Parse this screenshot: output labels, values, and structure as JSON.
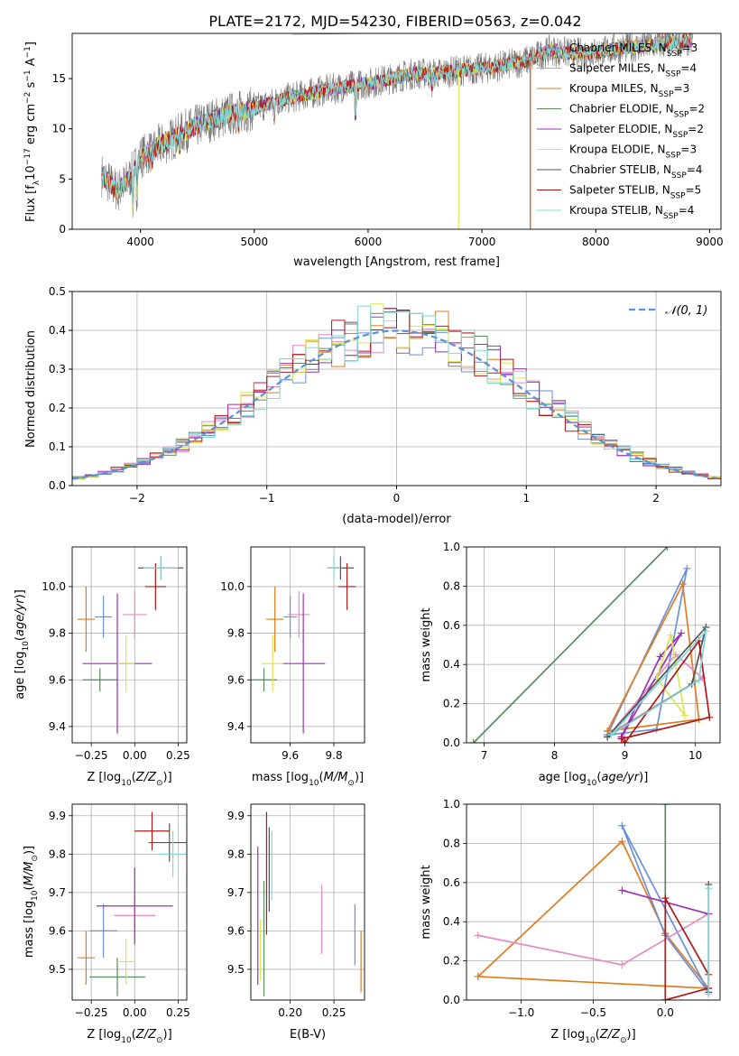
{
  "figure": {
    "title": "PLATE=2172, MJD=54230, FIBERID=0563, z=0.042"
  },
  "colors": {
    "Chabrier MILES": "#6a8fdc",
    "Salpeter MILES": "#e88ac0",
    "Kroupa MILES": "#e07b1e",
    "Chabrier ELODIE": "#5a8a5e",
    "Salpeter ELODIE": "#9b30b0",
    "Kroupa ELODIE": "#d8e84a",
    "Chabrier STELIB": "#555555",
    "Salpeter STELIB": "#b01818",
    "Kroupa STELIB": "#7fd8d8",
    "normal": "#5b8fd6",
    "grid": "#b0b0b0"
  },
  "chart_data": [
    {
      "id": "spectrum",
      "type": "line",
      "xlabel": "wavelength [Angstrom, rest frame]",
      "ylabel": "Flux [f_λ10^-17 erg cm^-2 s^-1 A^-1]",
      "xlim": [
        3400,
        9100
      ],
      "ylim": [
        0,
        19.5
      ],
      "xticks": [
        "4000",
        "5000",
        "6000",
        "7000",
        "8000",
        "9000"
      ],
      "yticks": [
        "0",
        "5",
        "10",
        "15"
      ],
      "grid": false,
      "legend_position": "top-right",
      "legend": [
        {
          "name": "Chabrier MILES",
          "nssp": "3"
        },
        {
          "name": "Salpeter MILES",
          "nssp": "4"
        },
        {
          "name": "Kroupa MILES",
          "nssp": "3"
        },
        {
          "name": "Chabrier ELODIE",
          "nssp": "2"
        },
        {
          "name": "Salpeter ELODIE",
          "nssp": "2"
        },
        {
          "name": "Kroupa ELODIE",
          "nssp": "3"
        },
        {
          "name": "Chabrier STELIB",
          "nssp": "4"
        },
        {
          "name": "Salpeter STELIB",
          "nssp": "5"
        },
        {
          "name": "Kroupa STELIB",
          "nssp": "4"
        }
      ],
      "continuum": {
        "x": [
          3650,
          3800,
          3900,
          4000,
          4200,
          4400,
          4600,
          4800,
          5000,
          5200,
          5400,
          5600,
          5800,
          6000,
          6200,
          6400,
          6600,
          6800,
          7000,
          7200,
          7400,
          7600,
          7800,
          8000,
          8200,
          8400,
          8600,
          8800
        ],
        "y": [
          5.5,
          3.8,
          5.0,
          7.2,
          8.5,
          9.8,
          10.8,
          11.5,
          12.0,
          12.8,
          13.3,
          13.8,
          14.2,
          14.5,
          15.0,
          15.5,
          15.5,
          15.8,
          16.0,
          16.3,
          16.8,
          17.8,
          17.5,
          17.6,
          18.0,
          18.2,
          18.5,
          18.8
        ]
      }
    },
    {
      "id": "residuals",
      "type": "line",
      "xlabel": "(data-model)/error",
      "ylabel": "Normed distribution",
      "xlim": [
        -2.5,
        2.5
      ],
      "ylim": [
        0,
        0.5
      ],
      "xticks": [
        "−2",
        "−1",
        "0",
        "1",
        "2"
      ],
      "yticks": [
        "0.0",
        "0.1",
        "0.2",
        "0.3",
        "0.4",
        "0.5"
      ],
      "grid": true,
      "legend_position": "top-right",
      "normal_label": "𝒩(0, 1)",
      "normal": {
        "mu": 0,
        "sigma": 1
      }
    },
    {
      "id": "age-vs-z",
      "type": "scatter",
      "xlabel": "Z [log10(Z/Z⊙)]",
      "ylabel": "age  [log10(age/yr)]",
      "xlim": [
        -0.36,
        0.3
      ],
      "ylim": [
        9.33,
        10.17
      ],
      "xticks": [
        {
          "v": -0.25,
          "t": "−0.25"
        },
        {
          "v": 0.0,
          "t": "0.00"
        },
        {
          "v": 0.25,
          "t": "0.25"
        }
      ],
      "yticks": [
        {
          "v": 9.4,
          "t": "9.4"
        },
        {
          "v": 9.6,
          "t": "9.6"
        },
        {
          "v": 9.8,
          "t": "9.8"
        },
        {
          "v": 10.0,
          "t": "10.0"
        }
      ],
      "points": [
        {
          "model": "Chabrier MILES",
          "x": -0.18,
          "xerr": 0.05,
          "y": 9.87,
          "yerr": 0.09
        },
        {
          "model": "Salpeter MILES",
          "x": 0.0,
          "xerr": 0.07,
          "y": 9.88,
          "yerr": 0.1
        },
        {
          "model": "Kroupa MILES",
          "x": -0.28,
          "xerr": 0.05,
          "y": 9.86,
          "yerr": 0.14
        },
        {
          "model": "Chabrier ELODIE",
          "x": -0.2,
          "xerr": 0.1,
          "y": 9.6,
          "yerr": 0.05
        },
        {
          "model": "Salpeter ELODIE",
          "x": -0.1,
          "xerr": 0.2,
          "y": 9.67,
          "yerr": 0.3
        },
        {
          "model": "Kroupa ELODIE",
          "x": -0.05,
          "xerr": 0.05,
          "y": 9.67,
          "yerr": 0.12
        },
        {
          "model": "Chabrier STELIB",
          "x": 0.15,
          "xerr": 0.13,
          "y": 10.08,
          "yerr": 0.05
        },
        {
          "model": "Salpeter STELIB",
          "x": 0.12,
          "xerr": 0.06,
          "y": 10.0,
          "yerr": 0.1
        },
        {
          "model": "Kroupa STELIB",
          "x": 0.15,
          "xerr": 0.1,
          "y": 10.08,
          "yerr": 0.05
        }
      ]
    },
    {
      "id": "age-vs-mass",
      "type": "scatter",
      "xlabel": "mass [log10(M/M⊙)]",
      "ylabel": "",
      "xlim": [
        9.42,
        9.94
      ],
      "ylim": [
        9.33,
        10.17
      ],
      "xticks": [
        {
          "v": 9.6,
          "t": "9.6"
        },
        {
          "v": 9.8,
          "t": "9.8"
        }
      ],
      "yticks": [
        {
          "v": 9.4,
          "t": "9.4"
        },
        {
          "v": 9.6,
          "t": "9.6"
        },
        {
          "v": 9.8,
          "t": "9.8"
        },
        {
          "v": 10.0,
          "t": "10.0"
        }
      ],
      "points": [
        {
          "model": "Chabrier MILES",
          "x": 9.6,
          "xerr": 0.03,
          "y": 9.87,
          "yerr": 0.09
        },
        {
          "model": "Salpeter MILES",
          "x": 9.64,
          "xerr": 0.05,
          "y": 9.88,
          "yerr": 0.1
        },
        {
          "model": "Kroupa MILES",
          "x": 9.53,
          "xerr": 0.04,
          "y": 9.86,
          "yerr": 0.14
        },
        {
          "model": "Chabrier ELODIE",
          "x": 9.48,
          "xerr": 0.06,
          "y": 9.6,
          "yerr": 0.05
        },
        {
          "model": "Salpeter ELODIE",
          "x": 9.66,
          "xerr": 0.1,
          "y": 9.67,
          "yerr": 0.3
        },
        {
          "model": "Kroupa ELODIE",
          "x": 9.52,
          "xerr": 0.05,
          "y": 9.67,
          "yerr": 0.12
        },
        {
          "model": "Chabrier STELIB",
          "x": 9.83,
          "xerr": 0.06,
          "y": 10.08,
          "yerr": 0.05
        },
        {
          "model": "Salpeter STELIB",
          "x": 9.86,
          "xerr": 0.04,
          "y": 10.0,
          "yerr": 0.1
        },
        {
          "model": "Kroupa STELIB",
          "x": 9.8,
          "xerr": 0.03,
          "y": 10.08,
          "yerr": 0.05
        }
      ]
    },
    {
      "id": "weight-vs-age",
      "type": "line",
      "xlabel": "age  [log10(age/yr)]",
      "ylabel": "mass weight",
      "xlim": [
        6.75,
        10.35
      ],
      "ylim": [
        0,
        1
      ],
      "xticks": [
        {
          "v": 7,
          "t": "7"
        },
        {
          "v": 8,
          "t": "8"
        },
        {
          "v": 9,
          "t": "9"
        },
        {
          "v": 10,
          "t": "10"
        }
      ],
      "yticks": [
        {
          "v": 0,
          "t": "0.0"
        },
        {
          "v": 0.2,
          "t": "0.2"
        },
        {
          "v": 0.4,
          "t": "0.4"
        },
        {
          "v": 0.6,
          "t": "0.6"
        },
        {
          "v": 0.8,
          "t": "0.8"
        },
        {
          "v": 1.0,
          "t": "1.0"
        }
      ],
      "series": [
        {
          "model": "Chabrier ELODIE",
          "x": [
            6.85,
            9.6
          ],
          "y": [
            0.0,
            1.0
          ]
        },
        {
          "model": "Chabrier MILES",
          "x": [
            8.75,
            9.45,
            9.88,
            8.75
          ],
          "y": [
            0.04,
            0.07,
            0.89,
            0.04
          ]
        },
        {
          "model": "Kroupa MILES",
          "x": [
            8.75,
            9.82,
            10.05,
            8.75
          ],
          "y": [
            0.06,
            0.81,
            0.12,
            0.06
          ]
        },
        {
          "model": "Salpeter MILES",
          "x": [
            8.8,
            9.72,
            10.1,
            8.8
          ],
          "y": [
            0.05,
            0.45,
            0.33,
            0.05
          ]
        },
        {
          "model": "Salpeter ELODIE",
          "x": [
            8.95,
            9.8,
            9.5,
            8.95
          ],
          "y": [
            0.03,
            0.56,
            0.44,
            0.03
          ]
        },
        {
          "model": "Kroupa ELODIE",
          "x": [
            9.45,
            9.65,
            9.85,
            9.45
          ],
          "y": [
            0.33,
            0.55,
            0.14,
            0.33
          ]
        },
        {
          "model": "Chabrier STELIB",
          "x": [
            8.75,
            9.95,
            10.15,
            8.75
          ],
          "y": [
            0.03,
            0.3,
            0.59,
            0.03
          ]
        },
        {
          "model": "Salpeter STELIB",
          "x": [
            9.0,
            10.05,
            10.2,
            8.95,
            9.0
          ],
          "y": [
            0.0,
            0.52,
            0.13,
            0.02,
            0.0
          ]
        },
        {
          "model": "Kroupa STELIB",
          "x": [
            8.8,
            10.05,
            10.15,
            8.8
          ],
          "y": [
            0.04,
            0.32,
            0.57,
            0.04
          ]
        }
      ]
    },
    {
      "id": "mass-vs-z",
      "type": "scatter",
      "xlabel": "Z [log10(Z/Z⊙)]",
      "ylabel": "mass [log10(M/M⊙)]",
      "xlim": [
        -0.36,
        0.3
      ],
      "ylim": [
        9.42,
        9.93
      ],
      "xticks": [
        {
          "v": -0.25,
          "t": "−0.25"
        },
        {
          "v": 0.0,
          "t": "0.00"
        },
        {
          "v": 0.25,
          "t": "0.25"
        }
      ],
      "yticks": [
        {
          "v": 9.5,
          "t": "9.5"
        },
        {
          "v": 9.6,
          "t": "9.6"
        },
        {
          "v": 9.7,
          "t": "9.7"
        },
        {
          "v": 9.8,
          "t": "9.8"
        },
        {
          "v": 9.9,
          "t": "9.9"
        }
      ],
      "points": [
        {
          "model": "Chabrier MILES",
          "x": -0.18,
          "xerr": 0.08,
          "y": 9.6,
          "yerr": 0.07
        },
        {
          "model": "Salpeter MILES",
          "x": 0.0,
          "xerr": 0.12,
          "y": 9.64,
          "yerr": 0.05
        },
        {
          "model": "Kroupa MILES",
          "x": -0.28,
          "xerr": 0.05,
          "y": 9.53,
          "yerr": 0.07
        },
        {
          "model": "Chabrier ELODIE",
          "x": -0.1,
          "xerr": 0.16,
          "y": 9.48,
          "yerr": 0.05
        },
        {
          "model": "Salpeter ELODIE",
          "x": -0.0,
          "xerr": 0.22,
          "y": 9.665,
          "yerr": 0.1
        },
        {
          "model": "Kroupa ELODIE",
          "x": -0.05,
          "xerr": 0.05,
          "y": 9.52,
          "yerr": 0.06
        },
        {
          "model": "Chabrier STELIB",
          "x": 0.2,
          "xerr": 0.12,
          "y": 9.83,
          "yerr": 0.05
        },
        {
          "model": "Salpeter STELIB",
          "x": 0.1,
          "xerr": 0.1,
          "y": 9.86,
          "yerr": 0.05
        },
        {
          "model": "Kroupa STELIB",
          "x": 0.22,
          "xerr": 0.08,
          "y": 9.8,
          "yerr": 0.06
        }
      ]
    },
    {
      "id": "mass-vs-ebv",
      "type": "scatter",
      "xlabel": "E(B-V)",
      "ylabel": "",
      "xlim": [
        0.155,
        0.285
      ],
      "ylim": [
        9.42,
        9.93
      ],
      "xticks": [
        {
          "v": 0.2,
          "t": "0.20"
        },
        {
          "v": 0.25,
          "t": "0.25"
        }
      ],
      "yticks": [
        {
          "v": 9.5,
          "t": "9.5"
        },
        {
          "v": 9.6,
          "t": "9.6"
        },
        {
          "v": 9.7,
          "t": "9.7"
        },
        {
          "v": 9.8,
          "t": "9.8"
        },
        {
          "v": 9.9,
          "t": "9.9"
        }
      ],
      "points": [
        {
          "model": "Chabrier MILES",
          "x": 0.274,
          "y": 9.59,
          "yerr": 0.08
        },
        {
          "model": "Salpeter MILES",
          "x": 0.236,
          "y": 9.63,
          "yerr": 0.09
        },
        {
          "model": "Kroupa MILES",
          "x": 0.281,
          "y": 9.52,
          "yerr": 0.08
        },
        {
          "model": "Chabrier ELODIE",
          "x": 0.17,
          "y": 9.58,
          "yerr": 0.15
        },
        {
          "model": "Salpeter ELODIE",
          "x": 0.163,
          "y": 9.64,
          "yerr": 0.18
        },
        {
          "model": "Kroupa ELODIE",
          "x": 0.166,
          "y": 9.55,
          "yerr": 0.08
        },
        {
          "model": "Chabrier STELIB",
          "x": 0.176,
          "y": 9.76,
          "yerr": 0.11
        },
        {
          "model": "Salpeter STELIB",
          "x": 0.173,
          "y": 9.75,
          "yerr": 0.16
        },
        {
          "model": "Kroupa STELIB",
          "x": 0.179,
          "y": 9.77,
          "yerr": 0.09
        }
      ]
    },
    {
      "id": "weight-vs-z",
      "type": "line",
      "xlabel": "Z [log10(Z/Z⊙)]",
      "ylabel": "mass weight",
      "xlim": [
        -1.38,
        0.38
      ],
      "ylim": [
        0,
        1
      ],
      "xticks": [
        {
          "v": -1.0,
          "t": "−1.0"
        },
        {
          "v": -0.5,
          "t": "−0.5"
        },
        {
          "v": 0.0,
          "t": "0.0"
        }
      ],
      "yticks": [
        {
          "v": 0,
          "t": "0.0"
        },
        {
          "v": 0.2,
          "t": "0.2"
        },
        {
          "v": 0.4,
          "t": "0.4"
        },
        {
          "v": 0.6,
          "t": "0.6"
        },
        {
          "v": 0.8,
          "t": "0.8"
        },
        {
          "v": 1.0,
          "t": "1.0"
        }
      ],
      "series": [
        {
          "model": "Chabrier ELODIE",
          "x": [
            0.0,
            0.0
          ],
          "y": [
            0.34,
            1.0
          ]
        },
        {
          "model": "Kroupa MILES",
          "x": [
            -1.3,
            -0.3,
            0.0,
            0.3,
            -1.3
          ],
          "y": [
            0.12,
            0.81,
            0.34,
            0.06,
            0.12
          ]
        },
        {
          "model": "Chabrier MILES",
          "x": [
            -0.3,
            0.0,
            0.3,
            -0.3
          ],
          "y": [
            0.89,
            0.33,
            0.04,
            0.89
          ]
        },
        {
          "model": "Salpeter MILES",
          "x": [
            -1.3,
            -0.3,
            0.3
          ],
          "y": [
            0.33,
            0.18,
            0.44
          ]
        },
        {
          "model": "Salpeter ELODIE",
          "x": [
            -0.3,
            0.3
          ],
          "y": [
            0.56,
            0.44
          ]
        },
        {
          "model": "Chabrier STELIB",
          "x": [
            0.3,
            0.3
          ],
          "y": [
            0.04,
            0.59
          ]
        },
        {
          "model": "Salpeter STELIB",
          "x": [
            0.0,
            0.0,
            0.3,
            0.3,
            0.0
          ],
          "y": [
            0.0,
            0.52,
            0.13,
            0.06,
            0.0
          ]
        },
        {
          "model": "Kroupa STELIB",
          "x": [
            0.3,
            0.3
          ],
          "y": [
            0.03,
            0.57
          ]
        }
      ]
    }
  ]
}
